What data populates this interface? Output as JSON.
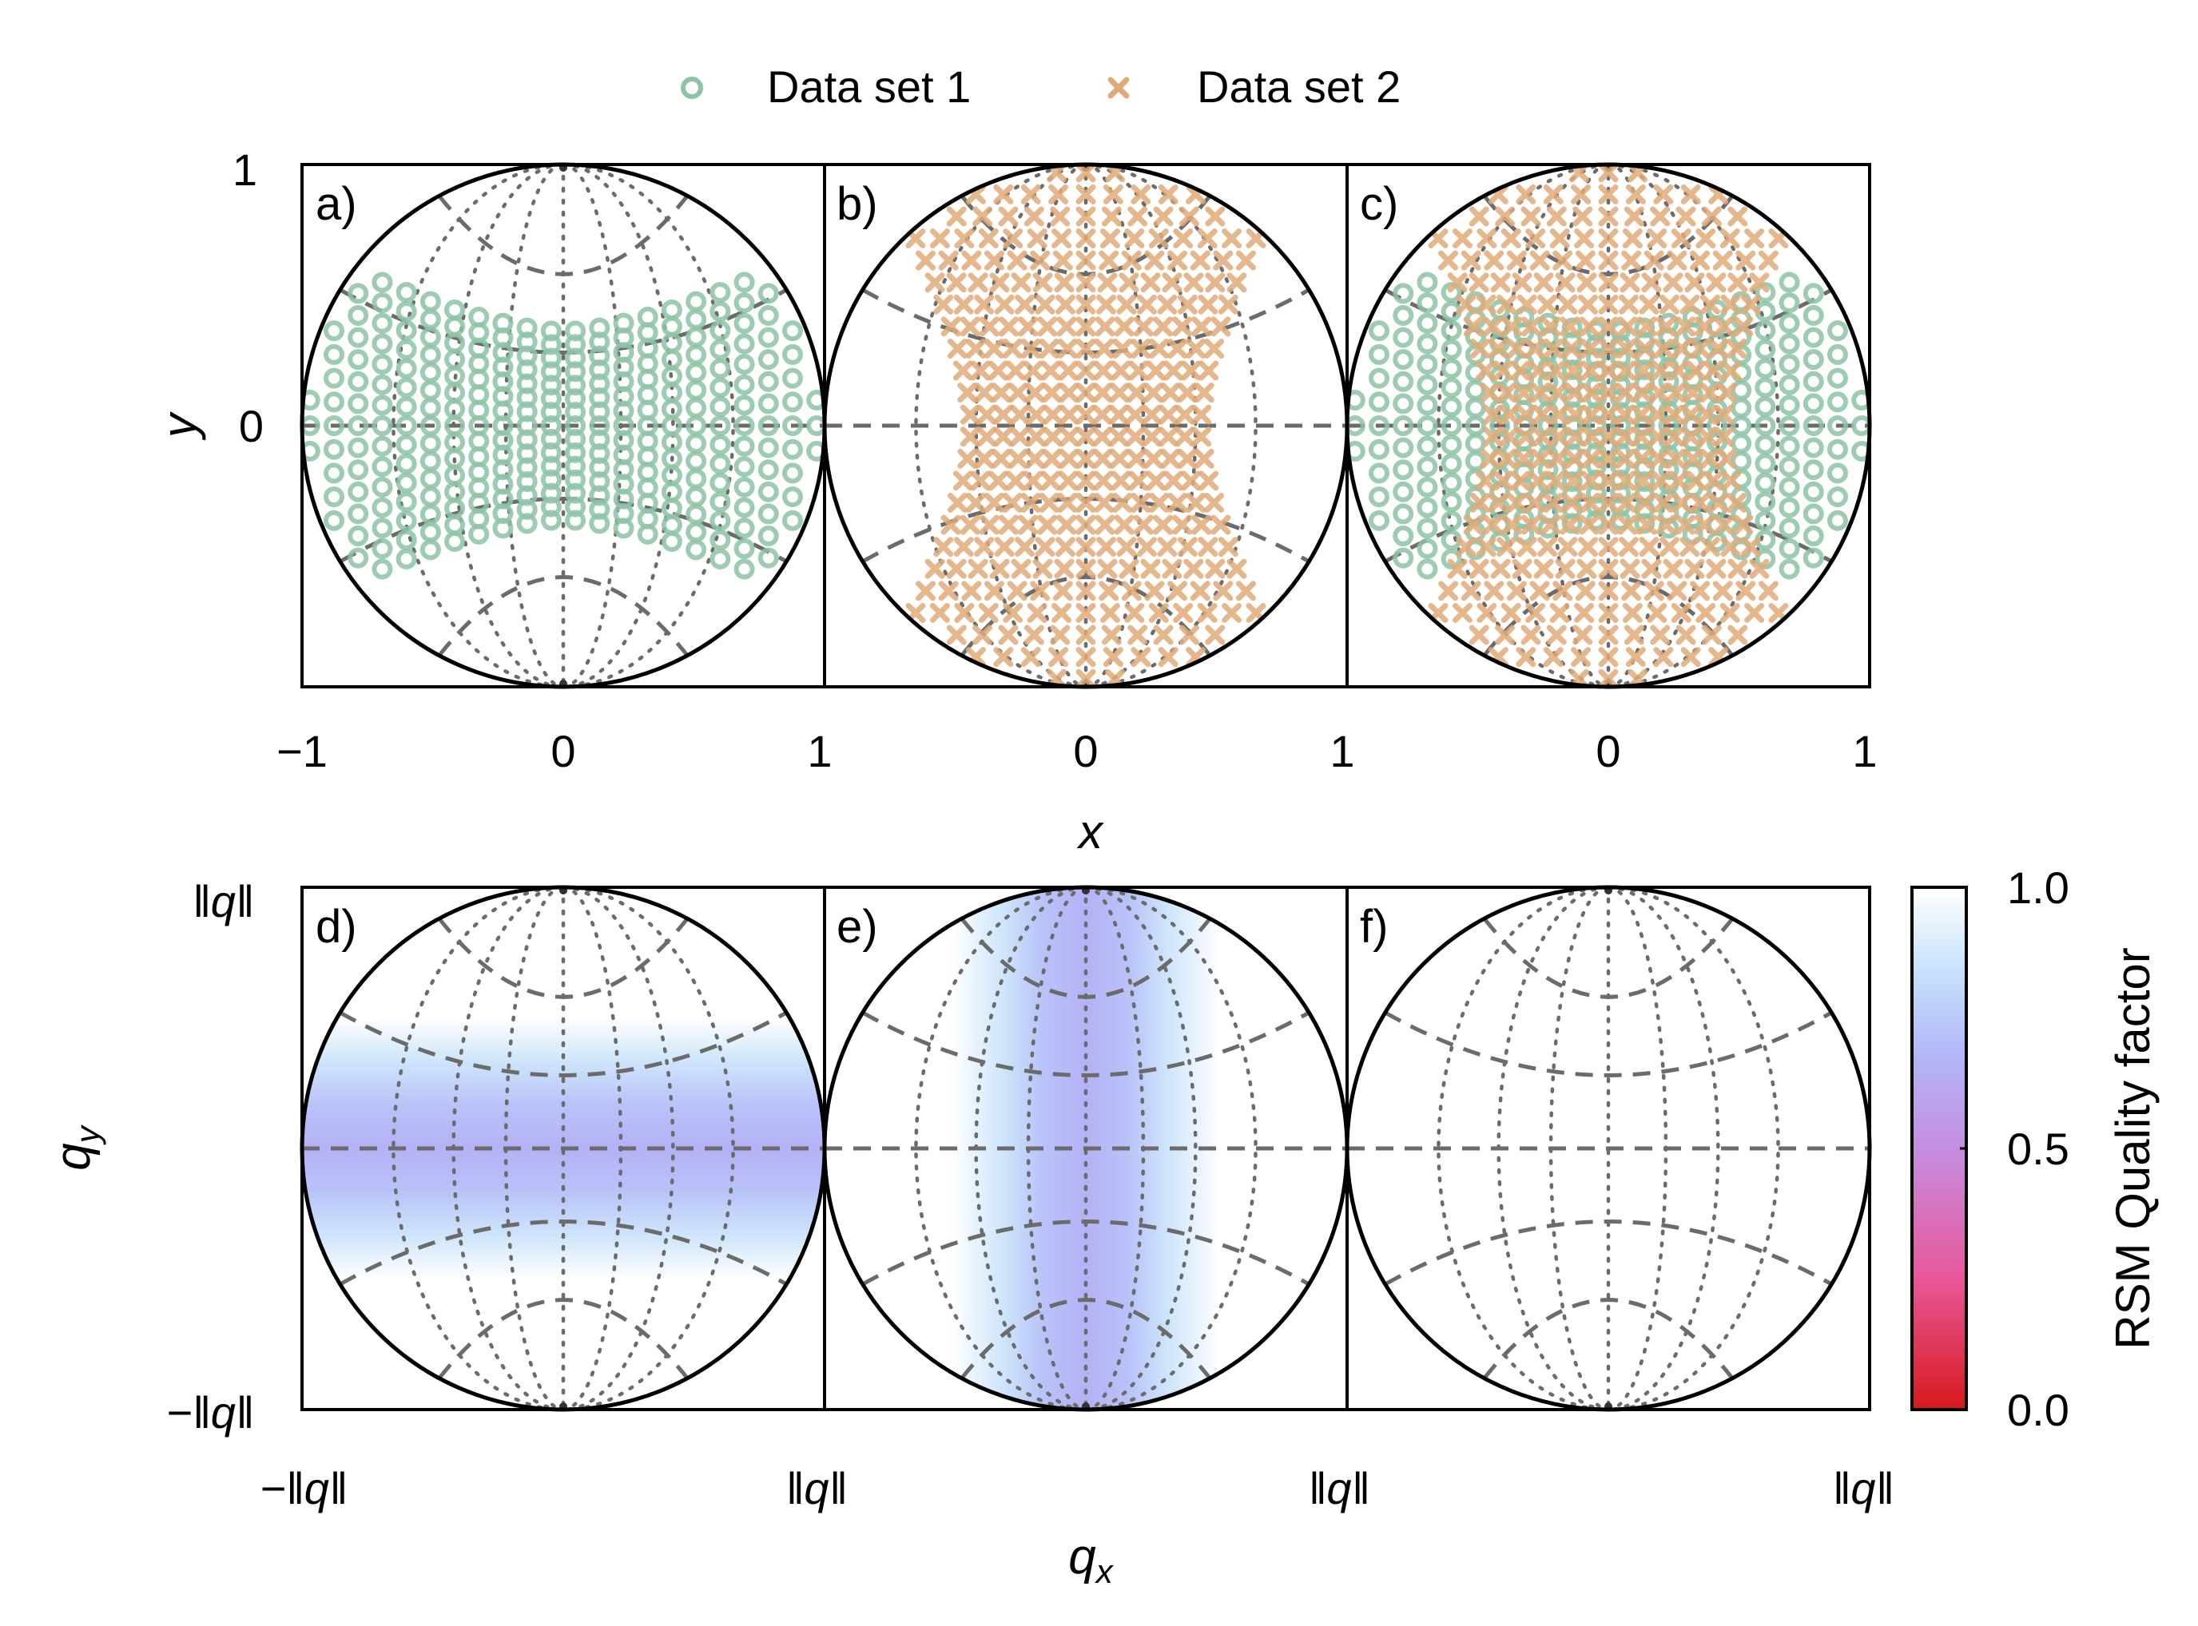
{
  "chart_data": {
    "type": "scatter",
    "legend": {
      "placement": "top-center",
      "entries": [
        {
          "label": "Data set 1",
          "marker": "circle",
          "color": "#8dc3a6"
        },
        {
          "label": "Data set 2",
          "marker": "x",
          "color": "#e0aa78"
        }
      ]
    },
    "top_row": {
      "xlabel": "x",
      "ylabel": "y",
      "xlim": [
        -1,
        1
      ],
      "ylim": [
        -1,
        1
      ],
      "panels": [
        {
          "label": "a)",
          "datasets": [
            "Data set 1"
          ]
        },
        {
          "label": "b)",
          "datasets": [
            "Data set 2"
          ]
        },
        {
          "label": "c)",
          "datasets": [
            "Data set 1",
            "Data set 2"
          ]
        }
      ],
      "x_ticks": [
        "−1",
        "0",
        "1",
        "0",
        "1",
        "0",
        "1"
      ],
      "y_ticks": [
        "1",
        "0"
      ]
    },
    "bottom_row": {
      "xlabel": "q",
      "xlabel_sub": "x",
      "ylabel": "q",
      "ylabel_sub": "y",
      "panels": [
        {
          "label": "d)",
          "pattern": "horizontal-band",
          "min_quality": 0.6
        },
        {
          "label": "e)",
          "pattern": "vertical-band",
          "min_quality": 0.6
        },
        {
          "label": "f)",
          "pattern": "uniform",
          "min_quality": 1.0
        }
      ],
      "x_ticks": [
        "−‖q‖",
        "‖q‖",
        "‖q‖",
        "‖q‖"
      ],
      "y_ticks": [
        "‖q‖",
        "−‖q‖"
      ]
    },
    "colorbar": {
      "label": "RSM Quality factor",
      "range": [
        0.0,
        1.0
      ],
      "ticks": [
        "1.0",
        "0.5",
        "0.0"
      ],
      "colors": [
        "#d7191c",
        "#e8579a",
        "#c58ee0",
        "#b2b7f8",
        "#c9e4fb",
        "#ffffff"
      ]
    },
    "guides": {
      "dashed": "latitude-like arcs",
      "dotted": "meridian-like arcs",
      "color": "#6b6b6b"
    }
  }
}
